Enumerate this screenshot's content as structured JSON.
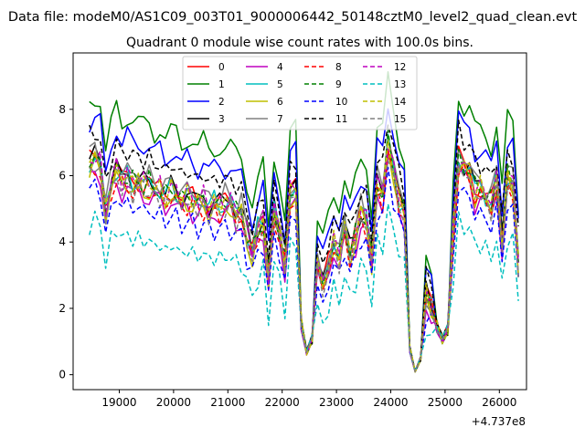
{
  "chart_data": {
    "type": "line",
    "suptitle": "Data file: modeM0/AS1C09_003T01_9000006442_50148cztM0_level2_quad_clean.evt",
    "title": "Quadrant 0 module wise count rates with 100.0s bins.",
    "xlabel": "",
    "ylabel": "",
    "x_offset_label": "+4.737e8",
    "xlim": [
      18150,
      26500
    ],
    "ylim": [
      -0.45,
      9.7
    ],
    "xticks": [
      19000,
      20000,
      21000,
      22000,
      23000,
      24000,
      25000,
      26000
    ],
    "yticks": [
      0,
      2,
      4,
      6,
      8
    ],
    "legend_position": "upper-center",
    "x_start": 18450,
    "x_step": 100,
    "base_profile": [
      6.4,
      6.6,
      6.3,
      5.0,
      5.8,
      6.2,
      5.9,
      6.0,
      5.8,
      5.9,
      5.7,
      5.8,
      5.6,
      5.6,
      5.4,
      5.6,
      5.5,
      5.3,
      5.4,
      5.3,
      5.2,
      5.3,
      5.1,
      5.2,
      5.1,
      5.2,
      5.2,
      4.9,
      5.0,
      4.2,
      3.7,
      4.4,
      4.6,
      3.0,
      5.0,
      4.3,
      3.4,
      5.5,
      5.6,
      1.6,
      0.7,
      1.1,
      3.3,
      2.6,
      3.4,
      4.0,
      3.6,
      4.5,
      3.7,
      4.2,
      4.9,
      4.7,
      3.5,
      5.8,
      5.5,
      7.0,
      6.2,
      5.3,
      5.0,
      0.8,
      0.1,
      0.5,
      2.4,
      2.1,
      1.5,
      1.1,
      1.4,
      4.3,
      6.5,
      6.3,
      6.2,
      5.6,
      5.7,
      5.4,
      5.2,
      5.9,
      4.0,
      6.0,
      5.8,
      3.5
    ],
    "series": [
      {
        "name": "0",
        "color": "#ff0000",
        "style": "solid",
        "scale": 1.0,
        "offset": 0.0,
        "seed": 1
      },
      {
        "name": "1",
        "color": "#008000",
        "style": "solid",
        "scale": 1.15,
        "offset": 0.9,
        "seed": 2
      },
      {
        "name": "2",
        "color": "#0000ff",
        "style": "solid",
        "scale": 1.1,
        "offset": 0.55,
        "seed": 3
      },
      {
        "name": "3",
        "color": "#000000",
        "style": "solid",
        "scale": 1.0,
        "offset": 0.05,
        "seed": 4
      },
      {
        "name": "4",
        "color": "#bf00bf",
        "style": "solid",
        "scale": 0.97,
        "offset": -0.2,
        "seed": 5
      },
      {
        "name": "5",
        "color": "#00bfbf",
        "style": "solid",
        "scale": 1.0,
        "offset": 0.0,
        "seed": 6
      },
      {
        "name": "6",
        "color": "#bfbf00",
        "style": "solid",
        "scale": 0.98,
        "offset": -0.1,
        "seed": 7
      },
      {
        "name": "7",
        "color": "#808080",
        "style": "solid",
        "scale": 1.02,
        "offset": 0.1,
        "seed": 8
      },
      {
        "name": "8",
        "color": "#ff0000",
        "style": "dashed",
        "scale": 0.96,
        "offset": -0.05,
        "seed": 9
      },
      {
        "name": "9",
        "color": "#008000",
        "style": "dashed",
        "scale": 1.0,
        "offset": 0.0,
        "seed": 10
      },
      {
        "name": "10",
        "color": "#0000ff",
        "style": "dashed",
        "scale": 0.93,
        "offset": -0.4,
        "seed": 11
      },
      {
        "name": "11",
        "color": "#000000",
        "style": "dashed",
        "scale": 1.05,
        "offset": 0.45,
        "seed": 12
      },
      {
        "name": "12",
        "color": "#bf00bf",
        "style": "dashed",
        "scale": 0.99,
        "offset": 0.1,
        "seed": 13
      },
      {
        "name": "13",
        "color": "#00bfbf",
        "style": "dashed",
        "scale": 0.82,
        "offset": -0.7,
        "seed": 14
      },
      {
        "name": "14",
        "color": "#bfbf00",
        "style": "dashed",
        "scale": 1.0,
        "offset": 0.0,
        "seed": 15
      },
      {
        "name": "15",
        "color": "#808080",
        "style": "dashed",
        "scale": 0.97,
        "offset": -0.1,
        "seed": 16
      }
    ]
  }
}
